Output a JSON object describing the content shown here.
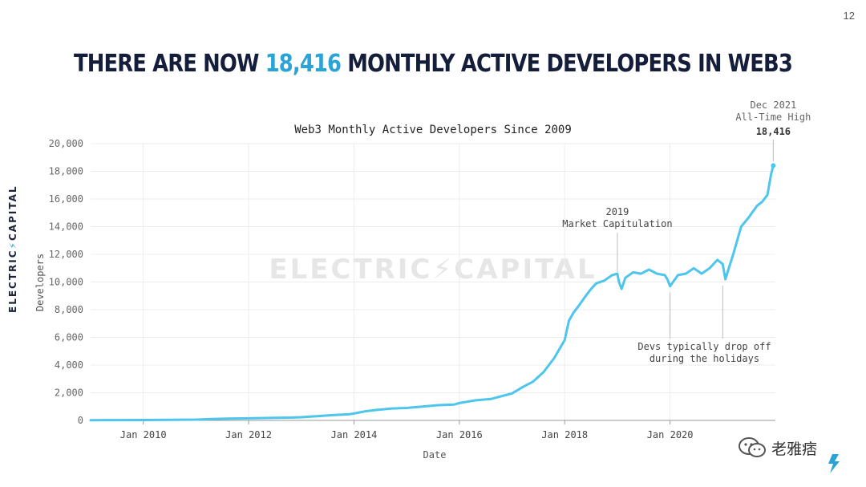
{
  "page_number": "12",
  "title": {
    "prefix": "THERE ARE NOW ",
    "highlight": "18,416",
    "suffix": " MONTHLY ACTIVE DEVELOPERS IN WEB3"
  },
  "brand": {
    "left": "ELECTRIC",
    "bolt": "⚡",
    "right": "CAPITAL"
  },
  "watermark": "ELECTRIC⚡CAPITAL",
  "social": {
    "account": "老雅痞"
  },
  "colors": {
    "line": "#4ec5ec",
    "accent": "#2ba3d6",
    "title": "#141d3a"
  },
  "chart_data": {
    "type": "line",
    "title": "Web3 Monthly Active Developers Since 2009",
    "xlabel": "Date",
    "ylabel": "Developers",
    "xlim": [
      2009.0,
      2022.0
    ],
    "ylim": [
      0,
      20000
    ],
    "yticks": [
      0,
      2000,
      4000,
      6000,
      8000,
      10000,
      12000,
      14000,
      16000,
      18000,
      20000
    ],
    "ytick_labels": [
      "0",
      "2,000",
      "4,000",
      "6,000",
      "8,000",
      "10,000",
      "12,000",
      "14,000",
      "16,000",
      "18,000",
      "20,000"
    ],
    "xticks": [
      2010.0,
      2012.0,
      2014.0,
      2016.0,
      2018.0,
      2020.0
    ],
    "xtick_labels": [
      "Jan 2010",
      "Jan 2012",
      "Jan 2014",
      "Jan 2016",
      "Jan 2018",
      "Jan 2020"
    ],
    "grid": true,
    "series": [
      {
        "name": "Monthly Active Developers",
        "x": [
          2009.0,
          2009.5,
          2010.0,
          2010.5,
          2011.0,
          2011.3,
          2011.6,
          2012.0,
          2012.4,
          2012.8,
          2013.0,
          2013.3,
          2013.6,
          2013.9,
          2014.0,
          2014.2,
          2014.4,
          2014.7,
          2015.0,
          2015.3,
          2015.6,
          2015.9,
          2016.0,
          2016.3,
          2016.6,
          2016.8,
          2017.0,
          2017.2,
          2017.4,
          2017.6,
          2017.8,
          2018.0,
          2018.08,
          2018.17,
          2018.25,
          2018.4,
          2018.5,
          2018.6,
          2018.75,
          2018.9,
          2019.0,
          2019.03,
          2019.08,
          2019.15,
          2019.3,
          2019.45,
          2019.6,
          2019.75,
          2019.9,
          2019.95,
          2020.0,
          2020.15,
          2020.3,
          2020.45,
          2020.6,
          2020.75,
          2020.9,
          2021.0,
          2021.05,
          2021.2,
          2021.35,
          2021.5,
          2021.65,
          2021.75,
          2021.85,
          2021.92,
          2021.96
        ],
        "values": [
          20,
          25,
          30,
          40,
          60,
          100,
          130,
          150,
          180,
          200,
          230,
          300,
          380,
          440,
          500,
          650,
          750,
          850,
          900,
          1000,
          1100,
          1150,
          1250,
          1450,
          1550,
          1750,
          1950,
          2400,
          2800,
          3500,
          4500,
          5800,
          7200,
          7800,
          8200,
          9000,
          9500,
          9900,
          10100,
          10500,
          10600,
          10000,
          9500,
          10300,
          10700,
          10600,
          10900,
          10600,
          10500,
          10200,
          9700,
          10500,
          10600,
          11000,
          10600,
          11000,
          11600,
          11300,
          10200,
          12000,
          14000,
          14700,
          15500,
          15800,
          16300,
          17800,
          18416
        ]
      }
    ],
    "annotations": [
      {
        "lines": [
          "2019",
          "Market Capitulation"
        ],
        "x": 2019.0,
        "y": 10500,
        "kind": "up"
      },
      {
        "lines": [
          "Devs typically drop off",
          "during the holidays"
        ],
        "x_points": [
          2020.0,
          2021.0
        ],
        "y_points": [
          9700,
          10200
        ],
        "kind": "down"
      },
      {
        "lines": [
          "Dec 2021",
          "All-Time High"
        ],
        "value_label": "18,416",
        "x": 2021.96,
        "y": 18416,
        "kind": "point"
      }
    ]
  }
}
